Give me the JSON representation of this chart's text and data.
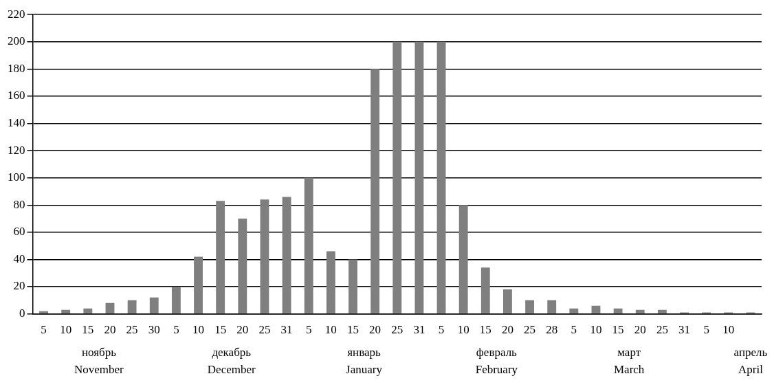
{
  "chart_data": {
    "type": "bar",
    "categories": [
      "5",
      "10",
      "15",
      "20",
      "25",
      "30",
      "5",
      "10",
      "15",
      "20",
      "25",
      "31",
      "5",
      "10",
      "15",
      "20",
      "25",
      "31",
      "5",
      "10",
      "15",
      "20",
      "25",
      "28",
      "5",
      "10",
      "15",
      "20",
      "25",
      "31",
      "5",
      "10",
      null
    ],
    "values": [
      2,
      3,
      4,
      8,
      10,
      12,
      20,
      42,
      83,
      70,
      84,
      86,
      100,
      46,
      40,
      180,
      200,
      200,
      200,
      80,
      34,
      18,
      10,
      10,
      4,
      6,
      4,
      3,
      3,
      1,
      1,
      1,
      1
    ],
    "color": "#7f7f7f",
    "ylim": [
      0,
      220
    ],
    "yticks": [
      0,
      20,
      40,
      60,
      80,
      100,
      120,
      140,
      160,
      180,
      200,
      220
    ],
    "grid": "y",
    "annotations": [
      "ноябрь",
      "November",
      "декабрь",
      "December",
      "январь",
      "January",
      "февраль",
      "February",
      "март",
      "March",
      "апрель",
      "April"
    ]
  }
}
